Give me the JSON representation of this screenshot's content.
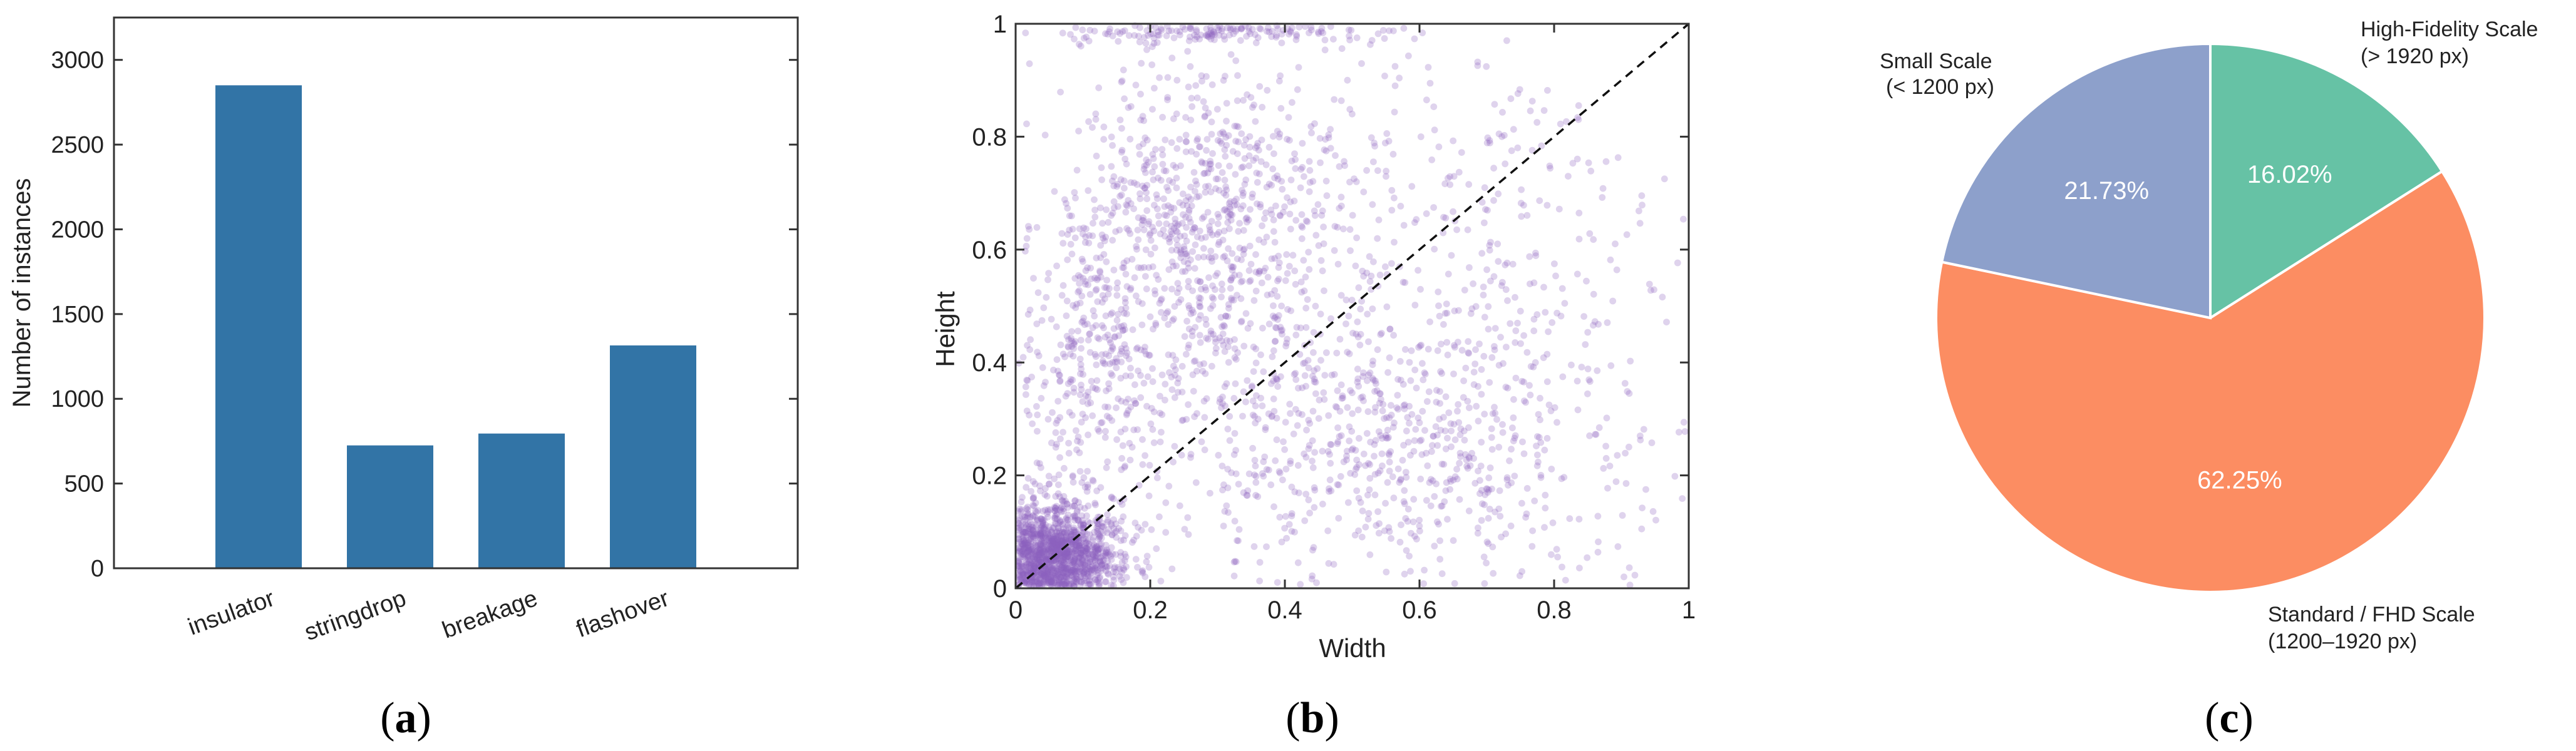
{
  "chart_data": [
    {
      "type": "bar",
      "panel_label_parts": [
        "(",
        "a",
        ")"
      ],
      "categories": [
        "insulator",
        "stringdrop",
        "breakage",
        "flashover"
      ],
      "values": [
        2850,
        725,
        795,
        1315
      ],
      "ylabel": "Number of instances",
      "xlabel": "",
      "ylim": [
        0,
        3250
      ],
      "yticks": [
        "0",
        "500",
        "1000",
        "1500",
        "2000",
        "2500",
        "3000"
      ],
      "grid": false,
      "bar_color": "#3274a6"
    },
    {
      "type": "scatter",
      "panel_label_parts": [
        "(",
        "b",
        ")"
      ],
      "xlabel": "Width",
      "ylabel": "Height",
      "xlim": [
        0,
        1
      ],
      "ylim": [
        0,
        1
      ],
      "xticks": [
        "0",
        "0.2",
        "0.4",
        "0.6",
        "0.8",
        "1"
      ],
      "yticks": [
        "0",
        "0.2",
        "0.4",
        "0.6",
        "0.8",
        "1"
      ],
      "reference_line": "y = x (dashed)",
      "grid": false,
      "point_color": "#8c62c0",
      "clusters": [
        {
          "cx": 0.05,
          "cy": 0.05,
          "sx": 0.05,
          "sy": 0.05,
          "n": 1300
        },
        {
          "cx": 0.28,
          "cy": 0.65,
          "sx": 0.09,
          "sy": 0.15,
          "n": 700
        },
        {
          "cx": 0.3,
          "cy": 0.985,
          "sx": 0.13,
          "sy": 0.012,
          "n": 160
        },
        {
          "cx": 0.12,
          "cy": 0.4,
          "sx": 0.06,
          "sy": 0.15,
          "n": 350
        },
        {
          "cx": 0.55,
          "cy": 0.25,
          "sx": 0.18,
          "sy": 0.12,
          "n": 650
        },
        {
          "cx": 0.65,
          "cy": 0.6,
          "sx": 0.18,
          "sy": 0.18,
          "n": 220
        },
        {
          "cx": 0.5,
          "cy": 0.5,
          "sx": 0.3,
          "sy": 0.3,
          "n": 280
        }
      ]
    },
    {
      "type": "pie",
      "panel_label_parts": [
        "(",
        "c",
        ")"
      ],
      "slices": [
        {
          "label_line1": "High-Fidelity Scale",
          "label_line2": "(> 1920 px)",
          "value": 16.02,
          "pct_text": "16.02%",
          "color": "#66c2a5"
        },
        {
          "label_line1": "Standard / FHD Scale",
          "label_line2": "(1200–1920 px)",
          "value": 62.25,
          "pct_text": "62.25%",
          "color": "#fc8d62"
        },
        {
          "label_line1": "Small Scale",
          "label_line2": "(< 1200 px)",
          "value": 21.73,
          "pct_text": "21.73%",
          "color": "#8da0cb"
        }
      ],
      "start": "top, clockwise"
    }
  ]
}
